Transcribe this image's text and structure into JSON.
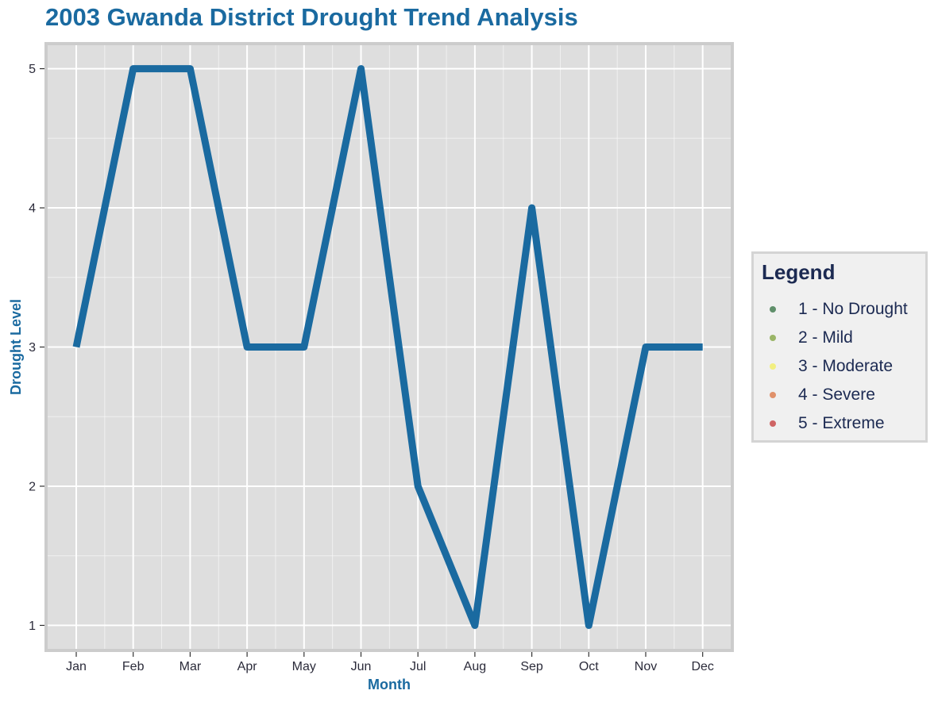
{
  "chart_data": {
    "type": "line",
    "title": "2003 Gwanda District Drought Trend Analysis",
    "xlabel": "Month",
    "ylabel": "Drought Level",
    "categories": [
      "Jan",
      "Feb",
      "Mar",
      "Apr",
      "May",
      "Jun",
      "Jul",
      "Aug",
      "Sep",
      "Oct",
      "Nov",
      "Dec"
    ],
    "series": [
      {
        "values": [
          3,
          5,
          5,
          3,
          3,
          5,
          2,
          1,
          4,
          1,
          3,
          3
        ],
        "color": "#1a6aa0"
      }
    ],
    "yticks": [
      1,
      2,
      3,
      4,
      5
    ],
    "ylim": [
      0.82,
      5.18
    ],
    "grid": true,
    "legend_position": "right",
    "legend": {
      "title": "Legend",
      "items": [
        {
          "label": "1 - No Drought",
          "color": "#5f8f6a"
        },
        {
          "label": "2 - Mild",
          "color": "#9ab567"
        },
        {
          "label": "3 - Moderate",
          "color": "#f2ef80"
        },
        {
          "label": "4 - Severe",
          "color": "#e0916a"
        },
        {
          "label": "5 - Extreme",
          "color": "#cf6464"
        }
      ]
    },
    "colors": {
      "panel_background": "#dedede",
      "panel_border": "#cccccc",
      "grid": "#ffffff",
      "title": "#1a6aa0"
    }
  }
}
